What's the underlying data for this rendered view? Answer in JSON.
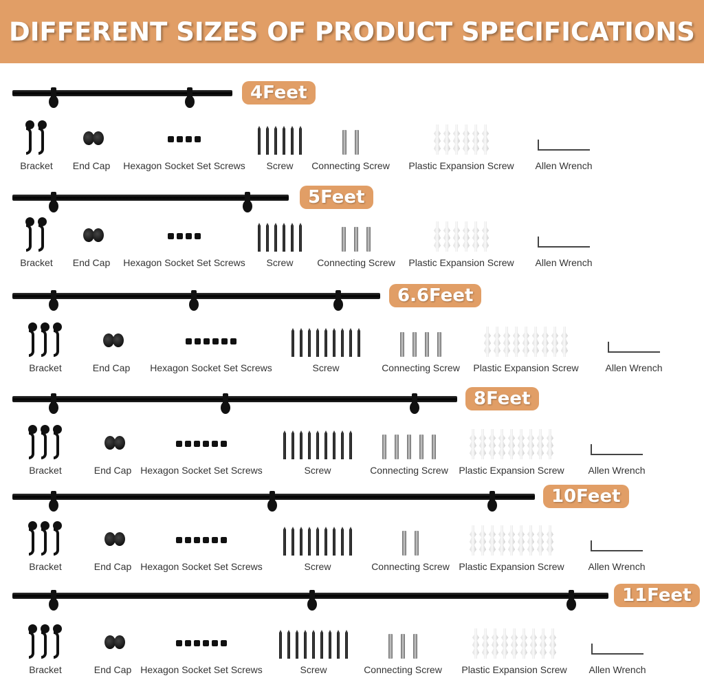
{
  "title": "DIFFERENT SIZES OF PRODUCT SPECIFICATIONS",
  "colors": {
    "accent": "#e19e66",
    "rod": "#111111"
  },
  "part_labels": [
    "Bracket",
    "End Cap",
    "Hexagon Socket Set Screws",
    "Screw",
    "Connecting Screw",
    "Plastic Expansion Screw",
    "Allen Wrench"
  ],
  "sizes": [
    {
      "label": "4Feet",
      "rod_brackets": 2,
      "counts": {
        "bracket": 2,
        "end_cap": 2,
        "hex_screws": 4,
        "screw": 6,
        "connecting_screw": 2,
        "plastic_expansion_screw": 6,
        "allen_wrench": 1
      }
    },
    {
      "label": "5Feet",
      "rod_brackets": 2,
      "counts": {
        "bracket": 2,
        "end_cap": 2,
        "hex_screws": 4,
        "screw": 6,
        "connecting_screw": 3,
        "plastic_expansion_screw": 6,
        "allen_wrench": 1
      }
    },
    {
      "label": "6.6Feet",
      "rod_brackets": 3,
      "counts": {
        "bracket": 3,
        "end_cap": 2,
        "hex_screws": 6,
        "screw": 9,
        "connecting_screw": 4,
        "plastic_expansion_screw": 9,
        "allen_wrench": 1
      }
    },
    {
      "label": "8Feet",
      "rod_brackets": 3,
      "counts": {
        "bracket": 3,
        "end_cap": 2,
        "hex_screws": 6,
        "screw": 9,
        "connecting_screw": 5,
        "plastic_expansion_screw": 9,
        "allen_wrench": 1
      }
    },
    {
      "label": "10Feet",
      "rod_brackets": 3,
      "counts": {
        "bracket": 3,
        "end_cap": 2,
        "hex_screws": 6,
        "screw": 9,
        "connecting_screw": 2,
        "plastic_expansion_screw": 9,
        "allen_wrench": 1
      }
    },
    {
      "label": "11Feet",
      "rod_brackets": 3,
      "counts": {
        "bracket": 3,
        "end_cap": 2,
        "hex_screws": 6,
        "screw": 9,
        "connecting_screw": 3,
        "plastic_expansion_screw": 9,
        "allen_wrench": 1
      }
    }
  ]
}
